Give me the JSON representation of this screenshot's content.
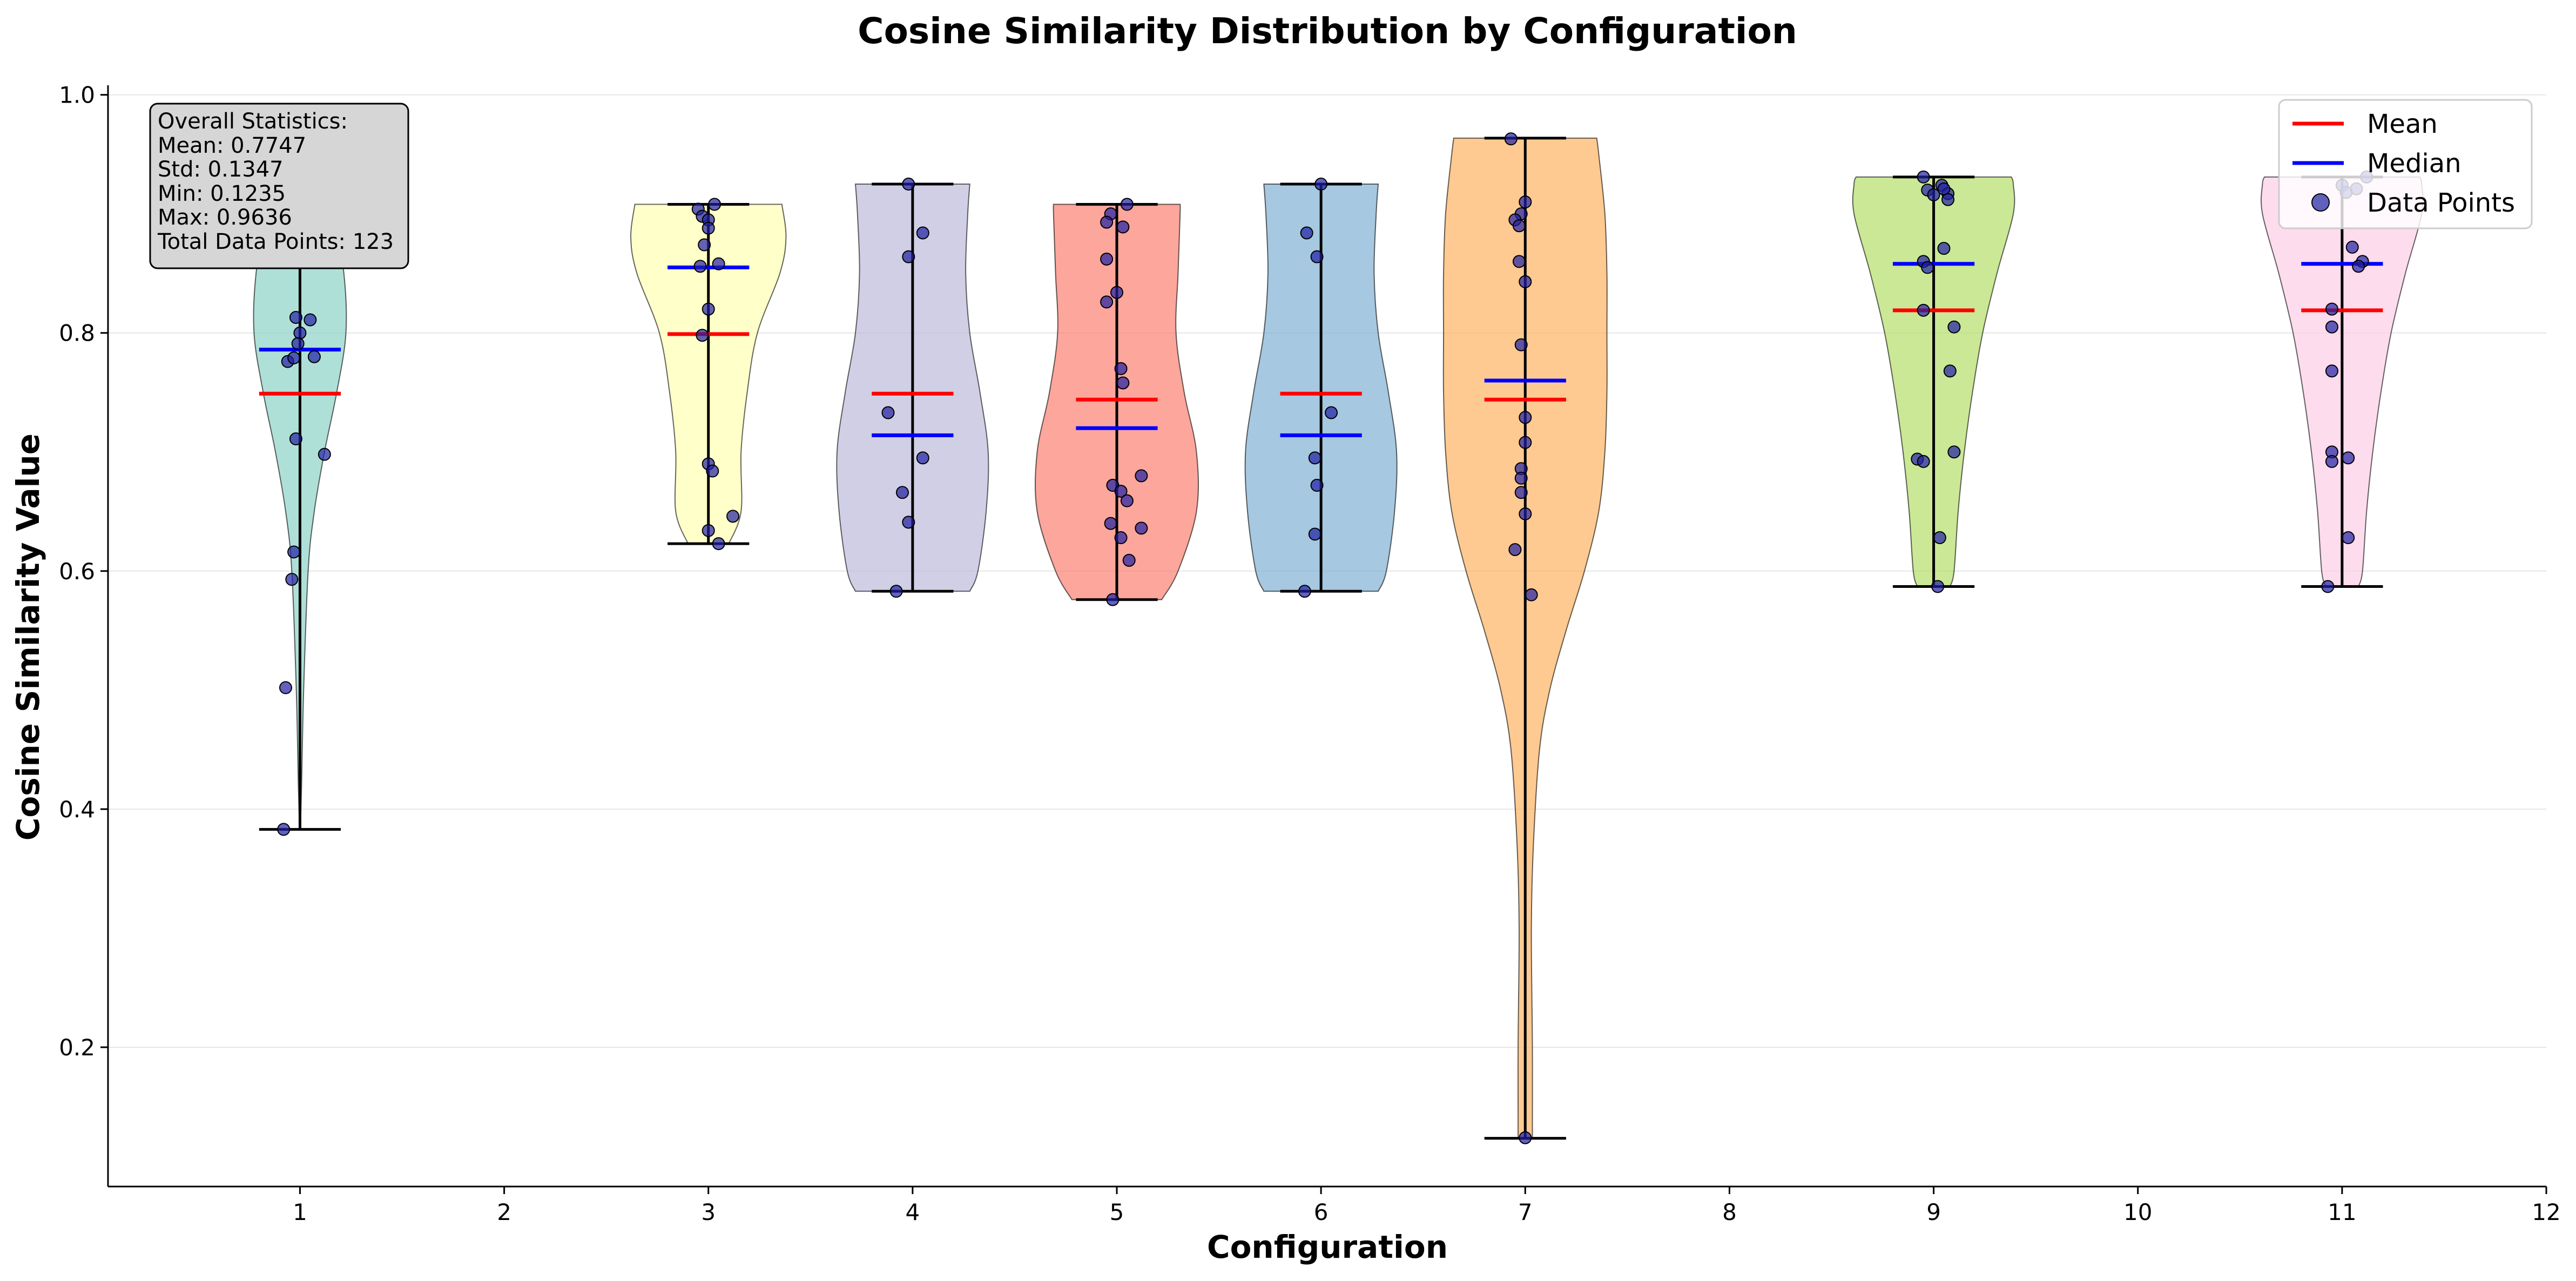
{
  "chart_data": {
    "type": "violin",
    "title": "Cosine Similarity Distribution by Configuration",
    "xlabel": "Configuration",
    "ylabel": "Cosine Similarity Value",
    "xlim": [
      0.06,
      12
    ],
    "ylim": [
      0.083,
      1.008
    ],
    "xticks": [
      "1",
      "2",
      "3",
      "4",
      "5",
      "6",
      "7",
      "8",
      "9",
      "10",
      "11",
      "12"
    ],
    "yticks": [
      "0.2",
      "0.4",
      "0.6",
      "0.8",
      "1.0"
    ],
    "ytick_values": [
      0.2,
      0.4,
      0.6,
      0.8,
      1.0
    ],
    "grid": "horizontal",
    "legend": {
      "placement": "top-right",
      "entries": [
        {
          "label": "Mean",
          "kind": "line",
          "color": "#ff0000"
        },
        {
          "label": "Median",
          "kind": "line",
          "color": "#0000ff"
        },
        {
          "label": "Data Points",
          "kind": "point",
          "color": "#1f1fa3"
        }
      ]
    },
    "stats_box": {
      "lines": [
        "Overall Statistics:",
        "Mean: 0.7747",
        "Std: 0.1347",
        "Min: 0.1235",
        "Max: 0.9636",
        "Total Data Points: 123"
      ]
    },
    "colors": {
      "mean": "#ff0000",
      "median": "#0000ff",
      "point": "#1f1fa3",
      "axis": "#000000",
      "grid": "#e6e6e6"
    },
    "series": [
      {
        "position": 1,
        "color": "#8dd3c7",
        "min": 0.383,
        "max": 0.911,
        "mean": 0.749,
        "median": 0.786,
        "profile": [
          [
            0.383,
            0.002
          ],
          [
            0.42,
            0.008
          ],
          [
            0.5,
            0.018
          ],
          [
            0.6,
            0.04
          ],
          [
            0.65,
            0.07
          ],
          [
            0.7,
            0.12
          ],
          [
            0.75,
            0.18
          ],
          [
            0.8,
            0.225
          ],
          [
            0.85,
            0.215
          ],
          [
            0.89,
            0.17
          ],
          [
            0.911,
            0.12
          ]
        ],
        "points": [
          [
            1.03,
            0.912
          ],
          [
            0.98,
            0.906
          ],
          [
            1.08,
            0.86
          ],
          [
            0.98,
            0.813
          ],
          [
            1.05,
            0.811
          ],
          [
            1.0,
            0.8
          ],
          [
            0.99,
            0.791
          ],
          [
            1.07,
            0.78
          ],
          [
            0.94,
            0.776
          ],
          [
            0.97,
            0.779
          ],
          [
            0.98,
            0.711
          ],
          [
            1.12,
            0.698
          ],
          [
            0.97,
            0.616
          ],
          [
            0.96,
            0.593
          ],
          [
            0.93,
            0.502
          ],
          [
            0.92,
            0.383
          ]
        ]
      },
      {
        "position": 3,
        "color": "#ffffb3",
        "min": 0.623,
        "max": 0.908,
        "mean": 0.799,
        "median": 0.855,
        "profile": [
          [
            0.623,
            0.1
          ],
          [
            0.65,
            0.16
          ],
          [
            0.7,
            0.16
          ],
          [
            0.75,
            0.19
          ],
          [
            0.8,
            0.24
          ],
          [
            0.85,
            0.35
          ],
          [
            0.88,
            0.38
          ],
          [
            0.908,
            0.36
          ]
        ],
        "points": [
          [
            1.03,
            0.908
          ],
          [
            0.95,
            0.904
          ],
          [
            0.97,
            0.898
          ],
          [
            1.0,
            0.895
          ],
          [
            1.0,
            0.888
          ],
          [
            0.98,
            0.874
          ],
          [
            1.05,
            0.858
          ],
          [
            0.96,
            0.856
          ],
          [
            1.0,
            0.82
          ],
          [
            0.97,
            0.798
          ],
          [
            1.0,
            0.69
          ],
          [
            1.02,
            0.684
          ],
          [
            1.12,
            0.646
          ],
          [
            1.0,
            0.634
          ],
          [
            1.05,
            0.623
          ]
        ]
      },
      {
        "position": 4,
        "color": "#bebada",
        "min": 0.583,
        "max": 0.925,
        "mean": 0.749,
        "median": 0.714,
        "profile": [
          [
            0.583,
            0.28
          ],
          [
            0.6,
            0.32
          ],
          [
            0.65,
            0.36
          ],
          [
            0.7,
            0.37
          ],
          [
            0.75,
            0.33
          ],
          [
            0.8,
            0.28
          ],
          [
            0.85,
            0.26
          ],
          [
            0.9,
            0.27
          ],
          [
            0.925,
            0.28
          ]
        ],
        "points": [
          [
            0.98,
            0.925
          ],
          [
            1.05,
            0.884
          ],
          [
            0.98,
            0.864
          ],
          [
            0.88,
            0.733
          ],
          [
            1.05,
            0.695
          ],
          [
            0.95,
            0.666
          ],
          [
            0.98,
            0.641
          ],
          [
            0.92,
            0.583
          ]
        ]
      },
      {
        "position": 5,
        "color": "#fb8072",
        "min": 0.576,
        "max": 0.908,
        "mean": 0.744,
        "median": 0.72,
        "profile": [
          [
            0.576,
            0.22
          ],
          [
            0.6,
            0.3
          ],
          [
            0.65,
            0.39
          ],
          [
            0.7,
            0.39
          ],
          [
            0.75,
            0.33
          ],
          [
            0.8,
            0.29
          ],
          [
            0.85,
            0.3
          ],
          [
            0.9,
            0.31
          ],
          [
            0.908,
            0.31
          ]
        ],
        "points": [
          [
            1.05,
            0.908
          ],
          [
            0.97,
            0.9
          ],
          [
            0.95,
            0.893
          ],
          [
            1.03,
            0.889
          ],
          [
            0.95,
            0.862
          ],
          [
            1.0,
            0.834
          ],
          [
            0.95,
            0.826
          ],
          [
            1.02,
            0.77
          ],
          [
            1.03,
            0.758
          ],
          [
            1.12,
            0.68
          ],
          [
            0.98,
            0.672
          ],
          [
            1.02,
            0.667
          ],
          [
            1.05,
            0.659
          ],
          [
            1.12,
            0.636
          ],
          [
            0.97,
            0.64
          ],
          [
            1.02,
            0.628
          ],
          [
            1.06,
            0.609
          ],
          [
            0.98,
            0.576
          ]
        ]
      },
      {
        "position": 6,
        "color": "#80b1d3",
        "min": 0.583,
        "max": 0.925,
        "mean": 0.749,
        "median": 0.714,
        "profile": [
          [
            0.583,
            0.28
          ],
          [
            0.6,
            0.32
          ],
          [
            0.65,
            0.36
          ],
          [
            0.7,
            0.37
          ],
          [
            0.75,
            0.33
          ],
          [
            0.8,
            0.28
          ],
          [
            0.85,
            0.26
          ],
          [
            0.9,
            0.27
          ],
          [
            0.925,
            0.28
          ]
        ],
        "points": [
          [
            1.0,
            0.925
          ],
          [
            0.93,
            0.884
          ],
          [
            0.98,
            0.864
          ],
          [
            1.05,
            0.733
          ],
          [
            0.97,
            0.695
          ],
          [
            0.98,
            0.672
          ],
          [
            0.97,
            0.631
          ],
          [
            0.92,
            0.583
          ]
        ]
      },
      {
        "position": 7,
        "color": "#fdb462",
        "min": 0.1235,
        "max": 0.9636,
        "mean": 0.744,
        "median": 0.76,
        "profile": [
          [
            0.1235,
            0.035
          ],
          [
            0.2,
            0.035
          ],
          [
            0.3,
            0.03
          ],
          [
            0.37,
            0.04
          ],
          [
            0.45,
            0.07
          ],
          [
            0.5,
            0.12
          ],
          [
            0.55,
            0.2
          ],
          [
            0.6,
            0.29
          ],
          [
            0.65,
            0.36
          ],
          [
            0.7,
            0.39
          ],
          [
            0.75,
            0.4
          ],
          [
            0.8,
            0.4
          ],
          [
            0.85,
            0.4
          ],
          [
            0.9,
            0.39
          ],
          [
            0.95,
            0.36
          ],
          [
            0.9636,
            0.35
          ]
        ],
        "points": [
          [
            0.93,
            0.963
          ],
          [
            1.0,
            0.91
          ],
          [
            0.98,
            0.9
          ],
          [
            0.95,
            0.895
          ],
          [
            0.97,
            0.89
          ],
          [
            0.97,
            0.86
          ],
          [
            1.0,
            0.843
          ],
          [
            0.98,
            0.79
          ],
          [
            1.0,
            0.729
          ],
          [
            1.0,
            0.708
          ],
          [
            0.98,
            0.686
          ],
          [
            0.98,
            0.678
          ],
          [
            0.98,
            0.666
          ],
          [
            1.0,
            0.648
          ],
          [
            0.95,
            0.618
          ],
          [
            1.03,
            0.58
          ],
          [
            1.0,
            0.124
          ]
        ]
      },
      {
        "position": 9,
        "color": "#b3de69",
        "min": 0.587,
        "max": 0.931,
        "mean": 0.819,
        "median": 0.858,
        "profile": [
          [
            0.587,
            0.08
          ],
          [
            0.6,
            0.1
          ],
          [
            0.65,
            0.12
          ],
          [
            0.7,
            0.15
          ],
          [
            0.75,
            0.19
          ],
          [
            0.8,
            0.24
          ],
          [
            0.85,
            0.31
          ],
          [
            0.9,
            0.39
          ],
          [
            0.925,
            0.39
          ],
          [
            0.931,
            0.38
          ]
        ],
        "points": [
          [
            0.95,
            0.931
          ],
          [
            1.04,
            0.924
          ],
          [
            0.97,
            0.92
          ],
          [
            1.07,
            0.917
          ],
          [
            1.05,
            0.921
          ],
          [
            1.0,
            0.916
          ],
          [
            1.07,
            0.912
          ],
          [
            1.05,
            0.871
          ],
          [
            0.95,
            0.86
          ],
          [
            0.97,
            0.855
          ],
          [
            0.95,
            0.819
          ],
          [
            1.1,
            0.805
          ],
          [
            1.08,
            0.768
          ],
          [
            1.1,
            0.7
          ],
          [
            0.92,
            0.694
          ],
          [
            0.95,
            0.692
          ],
          [
            1.03,
            0.628
          ],
          [
            1.02,
            0.587
          ]
        ]
      },
      {
        "position": 11,
        "color": "#fccde5",
        "min": 0.587,
        "max": 0.931,
        "mean": 0.819,
        "median": 0.858,
        "profile": [
          [
            0.587,
            0.08
          ],
          [
            0.6,
            0.1
          ],
          [
            0.65,
            0.12
          ],
          [
            0.7,
            0.15
          ],
          [
            0.75,
            0.19
          ],
          [
            0.8,
            0.24
          ],
          [
            0.85,
            0.31
          ],
          [
            0.9,
            0.39
          ],
          [
            0.925,
            0.39
          ],
          [
            0.931,
            0.38
          ]
        ],
        "points": [
          [
            1.12,
            0.931
          ],
          [
            1.0,
            0.924
          ],
          [
            1.07,
            0.921
          ],
          [
            1.02,
            0.918
          ],
          [
            1.05,
            0.872
          ],
          [
            1.1,
            0.86
          ],
          [
            1.08,
            0.856
          ],
          [
            0.95,
            0.82
          ],
          [
            0.95,
            0.805
          ],
          [
            0.95,
            0.768
          ],
          [
            0.95,
            0.7
          ],
          [
            1.03,
            0.695
          ],
          [
            0.95,
            0.692
          ],
          [
            1.03,
            0.628
          ],
          [
            0.93,
            0.587
          ]
        ]
      }
    ]
  }
}
